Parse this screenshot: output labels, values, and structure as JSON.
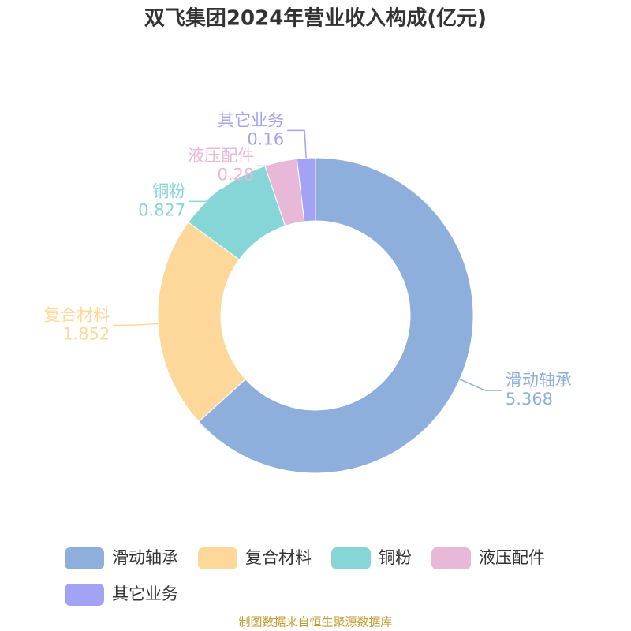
{
  "chart_data": {
    "type": "donut",
    "title": "双飞集团2024年营业收入构成(亿元)",
    "categories": [
      "滑动轴承",
      "复合材料",
      "铜粉",
      "液压配件",
      "其它业务"
    ],
    "values": [
      5.368,
      1.852,
      0.827,
      0.28,
      0.16
    ],
    "colors": [
      "#8eaedb",
      "#fdd89a",
      "#86d6d8",
      "#e8b8d8",
      "#a3a3f5"
    ],
    "legend": "bottom",
    "source": "制图数据来自恒生聚源数据库"
  }
}
